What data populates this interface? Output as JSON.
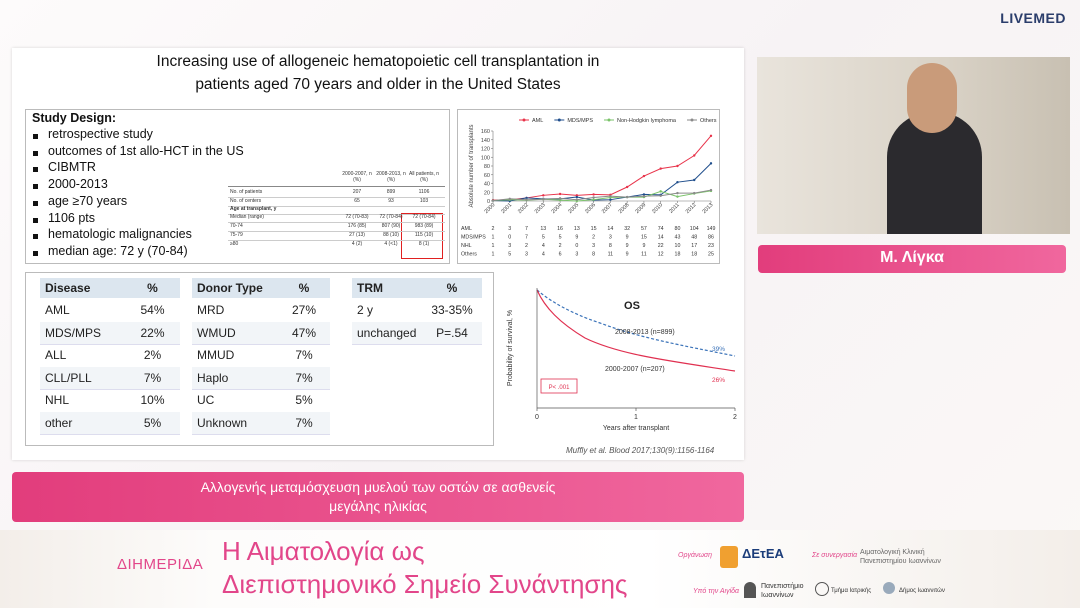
{
  "header": {
    "logo": "LIVEMED"
  },
  "slide": {
    "title_lines": [
      "Increasing use of allogeneic hematopoietic cell transplantation in",
      "patients aged 70 years and older in the United States"
    ],
    "study_design": {
      "heading": "Study Design:",
      "bullets": [
        "retrospective study",
        "outcomes of 1st allo-HCT in the US",
        "CIBMTR",
        "2000-2013",
        "age ≥70 years",
        "1106 pts",
        "hematologic malignancies",
        "median age: 72 y (70-84)"
      ]
    },
    "summary_table": {
      "headers": [
        "2000-2007, n (%)",
        "2008-2013, n (%)",
        "All patients, n (%)"
      ],
      "rows": [
        [
          "No. of patients",
          "207",
          "899",
          "1106"
        ],
        [
          "No. of centers",
          "65",
          "93",
          "103"
        ],
        [
          "Age at transplant, y"
        ],
        [
          "Median (range)",
          "72 (70-83)",
          "72 (70-84)",
          "72 (70-84)"
        ],
        [
          "70-74",
          "176 (85)",
          "807 (90)",
          "983 (89)"
        ],
        [
          "75-79",
          "27 (13)",
          "88 (10)",
          "115 (10)"
        ],
        [
          "≥80",
          "4 (2)",
          "4 (<1)",
          "8 (1)"
        ]
      ]
    },
    "line_chart": {
      "type": "line",
      "ylabel": "Absolute number of transplants",
      "x": [
        2000,
        2001,
        2002,
        2003,
        2004,
        2005,
        2006,
        2007,
        2008,
        2009,
        2010,
        2011,
        2012,
        2013
      ],
      "ylim": [
        0,
        160
      ],
      "yticks": [
        0,
        20,
        40,
        60,
        80,
        100,
        120,
        140,
        160
      ],
      "series": [
        {
          "name": "AML",
          "table_label": "AML",
          "color": "#e8334a",
          "values": [
            2,
            3,
            7,
            13,
            16,
            13,
            15,
            14,
            32,
            57,
            74,
            80,
            104,
            149
          ]
        },
        {
          "name": "MDS/MPS",
          "table_label": "MDS/MPS",
          "color": "#1f4e8c",
          "values": [
            1,
            0,
            7,
            5,
            5,
            9,
            2,
            3,
            9,
            15,
            14,
            43,
            48,
            86
          ]
        },
        {
          "name": "Non-Hodgkin lymphoma",
          "table_label": "NHL",
          "color": "#7ac36a",
          "values": [
            1,
            3,
            2,
            4,
            2,
            0,
            3,
            8,
            9,
            9,
            22,
            10,
            17,
            23
          ]
        },
        {
          "name": "Others",
          "table_label": "Others",
          "color": "#8a8a8a",
          "values": [
            1,
            5,
            3,
            4,
            6,
            3,
            8,
            11,
            9,
            11,
            12,
            18,
            18,
            25
          ]
        }
      ]
    },
    "disease_table": {
      "headers": [
        "Disease",
        "%"
      ],
      "rows": [
        [
          "AML",
          "54%"
        ],
        [
          "MDS/MPS",
          "22%"
        ],
        [
          "ALL",
          "2%"
        ],
        [
          "CLL/PLL",
          "7%"
        ],
        [
          "NHL",
          "10%"
        ],
        [
          "other",
          "5%"
        ]
      ]
    },
    "donor_table": {
      "headers": [
        "Donor Type",
        "%"
      ],
      "rows": [
        [
          "MRD",
          "27%"
        ],
        [
          "WMUD",
          "47%"
        ],
        [
          "MMUD",
          "7%"
        ],
        [
          "Haplo",
          "7%"
        ],
        [
          "UC",
          "5%"
        ],
        [
          "Unknown",
          "7%"
        ]
      ]
    },
    "trm_table": {
      "headers": [
        "TRM",
        "%"
      ],
      "rows": [
        [
          "2 y",
          "33-35%"
        ],
        [
          "unchanged",
          "P=.54"
        ]
      ]
    },
    "survival_chart": {
      "title": "OS",
      "ylabel": "Probability of survival, %",
      "xlabel": "Years after transplant",
      "xticks": [
        "0",
        "1",
        "2"
      ],
      "curve_labels": [
        "2008-2013 (n=899)",
        "2000-2007 (n=207)"
      ],
      "end_labels": [
        "39%",
        "26%"
      ],
      "pvalue": "P< .001"
    },
    "citation": "Muffly et al. Blood 2017;130(9):1156-1164"
  },
  "speaker": {
    "name": "Μ. Λίγκα"
  },
  "caption": {
    "lines": [
      "Αλλογενής μεταμόσχευση μυελού των οστών σε ασθενείς",
      "μεγάλης ηλικίας"
    ]
  },
  "footer": {
    "event": "ΔΙΗΜΕΡΙΔΑ",
    "title_lines": [
      "Η Αιματολογία ως",
      "Διεπιστημονικό Σημείο Συνάντησης"
    ],
    "organizer_label": "Οργάνωση",
    "organizer": "ΔΕτΕΑ",
    "collab_label": "Σε συνεργασία",
    "collab_lines": [
      "Αιματολογική Κλινική",
      "Πανεπιστημίου Ιωαννίνων"
    ],
    "auspices_label": "Υπό την Αιγίδα",
    "university_lines": [
      "Πανεπιστήμιο",
      "Ιωαννίνων"
    ],
    "department": "Τμήμα Ιατρικής",
    "municipality": "Δήμος Ιωαννιτών"
  }
}
